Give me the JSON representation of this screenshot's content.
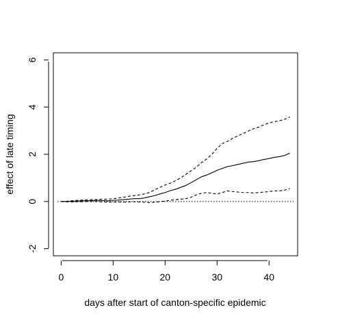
{
  "chart_data": {
    "type": "line",
    "title": "",
    "xlabel": "days after start of canton-specific epidemic",
    "ylabel": "effect of late timing",
    "xlim": [
      -1.5,
      45.5
    ],
    "ylim": [
      -2.3,
      6.3
    ],
    "x_ticks": [
      0,
      10,
      20,
      30,
      40
    ],
    "y_ticks": [
      -2,
      0,
      2,
      4,
      6
    ],
    "x_tick_labels": [
      "0",
      "10",
      "20",
      "30",
      "40"
    ],
    "y_tick_labels": [
      "-2",
      "0",
      "2",
      "4",
      "6"
    ],
    "grid": false,
    "legend": "none",
    "reference_line": {
      "y": 0,
      "style": "dotted",
      "color": "#000000"
    },
    "series": [
      {
        "style": "solid",
        "color": "#000000",
        "x": [
          0,
          1,
          2,
          3,
          4,
          5,
          6,
          7,
          8,
          9,
          10,
          11,
          12,
          13,
          14,
          15,
          16,
          17,
          18,
          19,
          20,
          21,
          22,
          23,
          24,
          25,
          26,
          27,
          28,
          29,
          30,
          31,
          32,
          33,
          34,
          35,
          36,
          37,
          38,
          39,
          40,
          41,
          42,
          43,
          44
        ],
        "y": [
          0,
          0,
          0.01,
          0.02,
          0.03,
          0.03,
          0.04,
          0.05,
          0.04,
          0.03,
          0.05,
          0.06,
          0.08,
          0.1,
          0.12,
          0.12,
          0.15,
          0.2,
          0.25,
          0.32,
          0.38,
          0.46,
          0.52,
          0.6,
          0.68,
          0.8,
          0.92,
          1.05,
          1.12,
          1.22,
          1.32,
          1.4,
          1.48,
          1.52,
          1.57,
          1.62,
          1.67,
          1.69,
          1.73,
          1.78,
          1.82,
          1.87,
          1.9,
          1.95,
          2.05
        ]
      },
      {
        "style": "dashed",
        "color": "#000000",
        "x": [
          0,
          1,
          2,
          3,
          4,
          5,
          6,
          7,
          8,
          9,
          10,
          11,
          12,
          13,
          14,
          15,
          16,
          17,
          18,
          19,
          20,
          21,
          22,
          23,
          24,
          25,
          26,
          27,
          28,
          29,
          30,
          31,
          32,
          33,
          34,
          35,
          36,
          37,
          38,
          39,
          40,
          41,
          42,
          43,
          44
        ],
        "y": [
          0,
          0.01,
          0.03,
          0.05,
          0.06,
          0.07,
          0.08,
          0.08,
          0.1,
          0.1,
          0.12,
          0.15,
          0.18,
          0.22,
          0.25,
          0.28,
          0.32,
          0.38,
          0.5,
          0.6,
          0.7,
          0.78,
          0.88,
          1.0,
          1.15,
          1.3,
          1.45,
          1.65,
          1.8,
          2.0,
          2.25,
          2.45,
          2.55,
          2.68,
          2.78,
          2.88,
          2.98,
          3.08,
          3.15,
          3.25,
          3.33,
          3.38,
          3.42,
          3.48,
          3.58
        ]
      },
      {
        "style": "dashed",
        "color": "#000000",
        "x": [
          0,
          1,
          2,
          3,
          4,
          5,
          6,
          7,
          8,
          9,
          10,
          11,
          12,
          13,
          14,
          15,
          16,
          17,
          18,
          19,
          20,
          21,
          22,
          23,
          24,
          25,
          26,
          27,
          28,
          29,
          30,
          31,
          32,
          33,
          34,
          35,
          36,
          37,
          38,
          39,
          40,
          41,
          42,
          43,
          44
        ],
        "y": [
          0,
          -0.01,
          -0.02,
          -0.01,
          -0.01,
          0,
          0,
          0,
          -0.02,
          -0.03,
          -0.02,
          -0.02,
          -0.03,
          -0.02,
          -0.01,
          -0.02,
          -0.03,
          -0.05,
          -0.03,
          -0.01,
          0.02,
          0.05,
          0.08,
          0.1,
          0.12,
          0.18,
          0.28,
          0.35,
          0.38,
          0.35,
          0.32,
          0.38,
          0.45,
          0.42,
          0.4,
          0.38,
          0.38,
          0.36,
          0.38,
          0.4,
          0.42,
          0.45,
          0.45,
          0.48,
          0.55
        ]
      }
    ]
  }
}
